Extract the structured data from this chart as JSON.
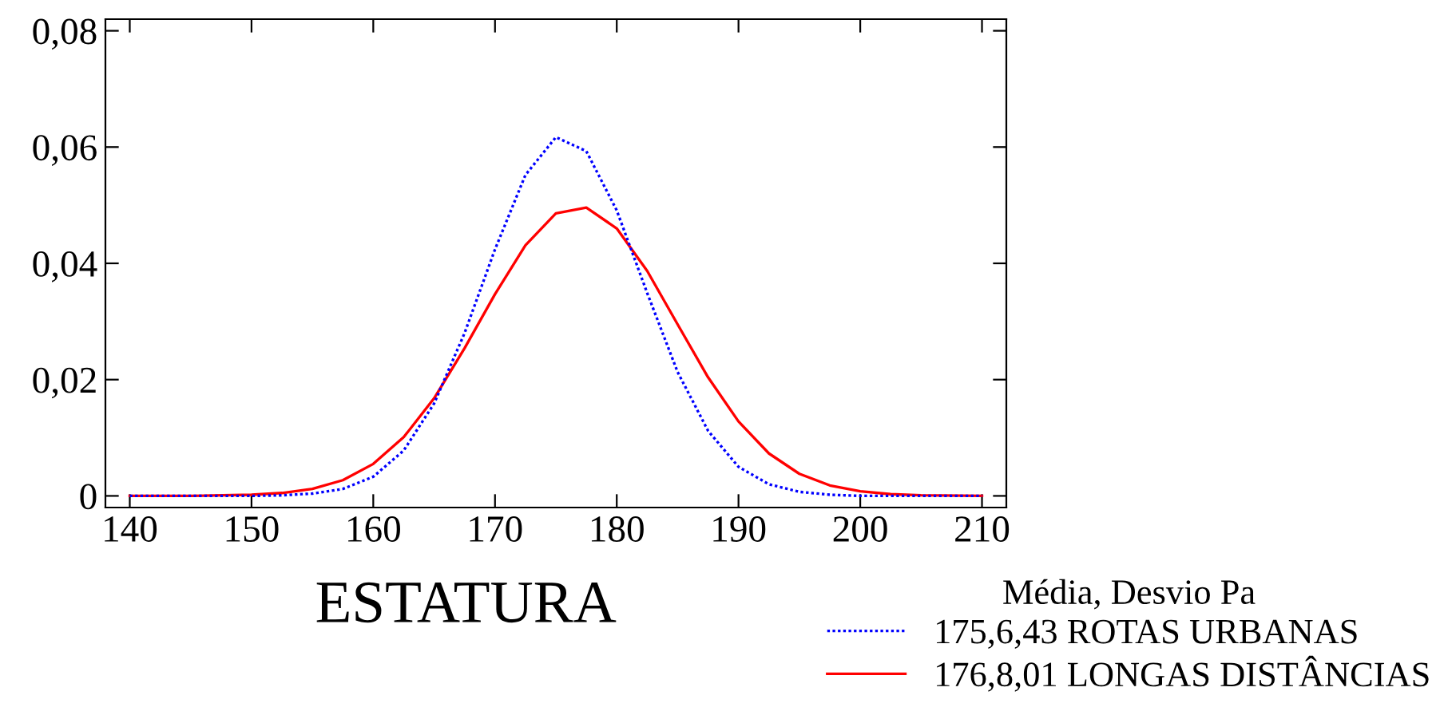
{
  "chart_data": {
    "type": "line",
    "xlabel": "ESTATURA",
    "legend_title": "Média, Desvio Pa",
    "legend": "bottom right",
    "x": [
      140,
      145,
      150,
      152.5,
      155,
      157.5,
      160,
      162.5,
      165,
      167.5,
      170,
      172.5,
      175,
      177.5,
      180,
      182.5,
      185,
      187.5,
      190,
      192.5,
      195,
      197.5,
      200,
      202.5,
      205,
      210
    ],
    "series": [
      {
        "name": "175,6,43 ROTAS URBANAS",
        "color": "#0000ff",
        "line_style": "dotted",
        "values": [
          0,
          0,
          0,
          0.0001,
          0.0004,
          0.0012,
          0.0033,
          0.0078,
          0.0159,
          0.028,
          0.0424,
          0.0552,
          0.0617,
          0.0593,
          0.0491,
          0.0349,
          0.0213,
          0.0112,
          0.005,
          0.002,
          0.0007,
          0.0002,
          0,
          0,
          0,
          0
        ]
      },
      {
        "name": "176,8,01 LONGAS DISTÂNCIAS",
        "color": "#ff0000",
        "line_style": "solid",
        "values": [
          0,
          0,
          0.0002,
          0.0005,
          0.0012,
          0.0027,
          0.0055,
          0.0101,
          0.0168,
          0.0254,
          0.0347,
          0.0431,
          0.0486,
          0.0496,
          0.046,
          0.0387,
          0.0295,
          0.0204,
          0.0128,
          0.0073,
          0.0038,
          0.0018,
          0.0008,
          0.0003,
          0.0001,
          0
        ]
      }
    ],
    "xlim": [
      138,
      212
    ],
    "ylim": [
      -0.002,
      0.082
    ],
    "xticks": [
      140,
      150,
      160,
      170,
      180,
      190,
      200,
      210
    ],
    "yticks": [
      {
        "value": 0,
        "label": "0"
      },
      {
        "value": 0.02,
        "label": "0,02"
      },
      {
        "value": 0.04,
        "label": "0,04"
      },
      {
        "value": 0.06,
        "label": "0,06"
      },
      {
        "value": 0.08,
        "label": "0,08"
      }
    ],
    "grid": false
  }
}
